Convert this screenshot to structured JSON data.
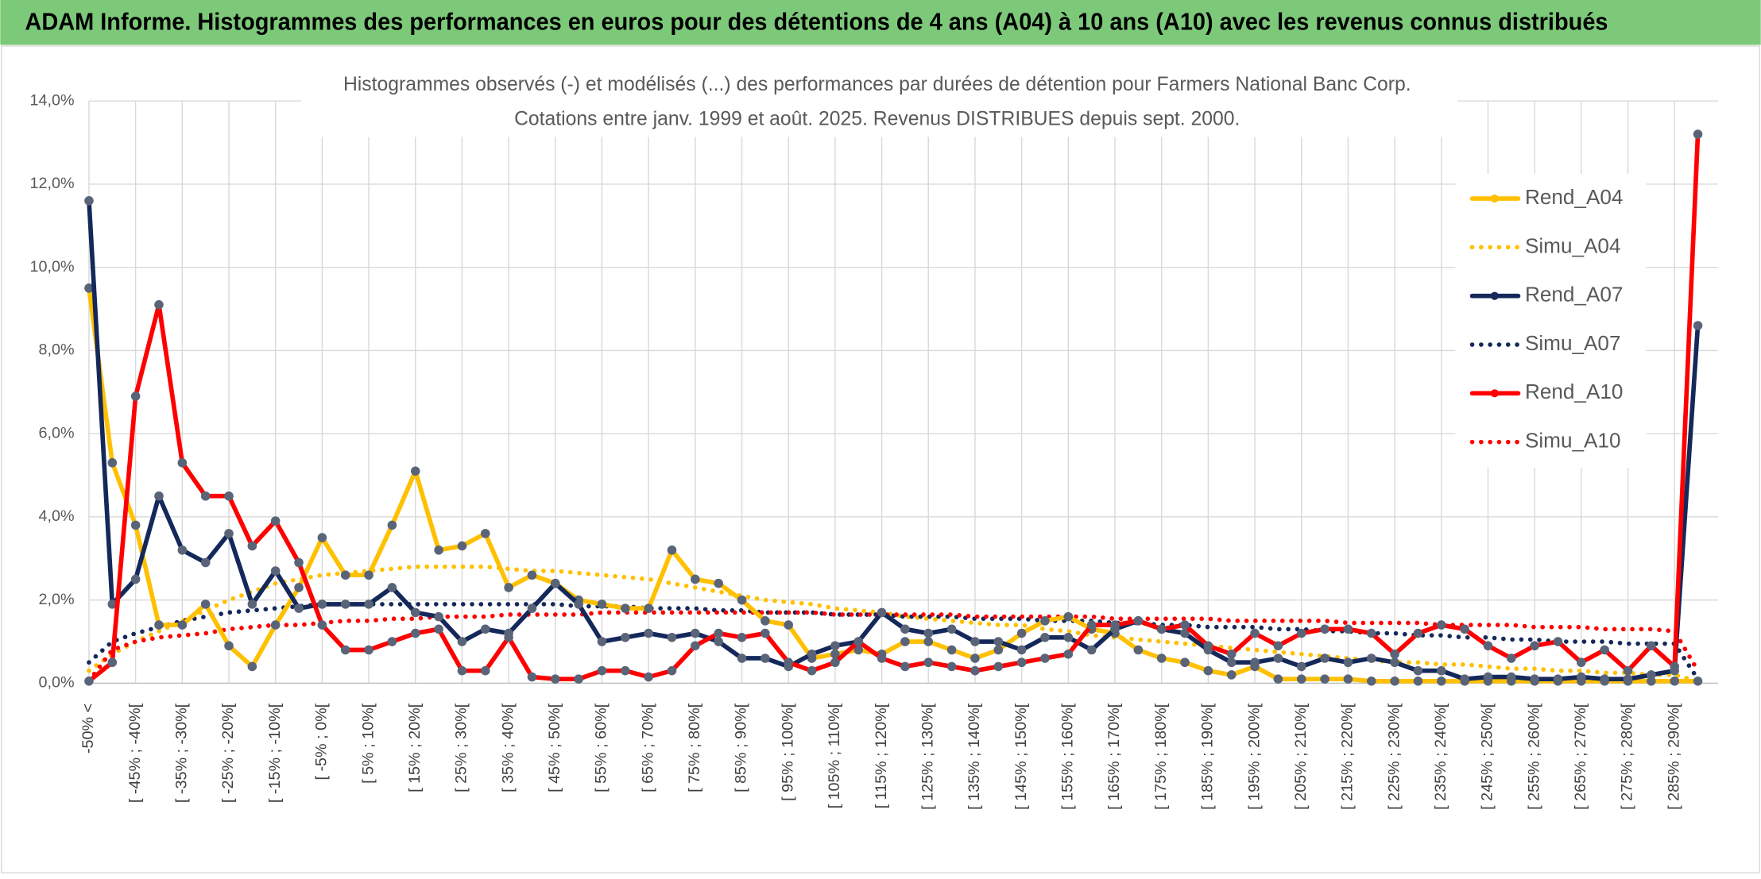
{
  "chart_data": {
    "type": "line",
    "title": "ADAM Informe. Histogrammes des performances en euros pour des détentions de 4 ans (A04) à 10 ans (A10) avec les revenus connus distribués",
    "subtitle": [
      "Histogrammes observés (-) et modélisés (...) des performances par durées de détention pour Farmers National Banc Corp.",
      "Cotations entre janv. 1999 et août. 2025. Revenus DISTRIBUES depuis sept. 2000."
    ],
    "categories": [
      "-50% <",
      null,
      "[ -45% ; -40%[",
      null,
      "[ -35% ; -30%[",
      null,
      "[ -25% ; -20%[",
      null,
      "[ -15% ; -10%[",
      null,
      "[ -5% ; 0%[",
      null,
      "[ 5% ; 10%[",
      null,
      "[ 15% ; 20%[",
      null,
      "[ 25% ; 30%[",
      null,
      "[ 35% ; 40%[",
      null,
      "[ 45% ; 50%[",
      null,
      "[ 55% ; 60%[",
      null,
      "[ 65% ; 70%[",
      null,
      "[ 75% ; 80%[",
      null,
      "[ 85% ; 90%[",
      null,
      "[ 95% ; 100%[",
      null,
      "[ 105% ; 110%[",
      null,
      "[ 115% ; 120%[",
      null,
      "[ 125% ; 130%[",
      null,
      "[ 135% ; 140%[",
      null,
      "[ 145% ; 150%[",
      null,
      "[ 155% ; 160%[",
      null,
      "[ 165% ; 170%[",
      null,
      "[ 175% ; 180%[",
      null,
      "[ 185% ; 190%[",
      null,
      "[ 195% ; 200%[",
      null,
      "[ 205% ; 210%[",
      null,
      "[ 215% ; 220%[",
      null,
      "[ 225% ; 230%[",
      null,
      "[ 235% ; 240%[",
      null,
      "[ 245% ; 250%[",
      null,
      "[ 255% ; 260%[",
      null,
      "[ 265% ; 270%[",
      null,
      "[ 275% ; 280%[",
      null,
      "[ 285% ; 290%[",
      null
    ],
    "ylim": [
      0,
      14
    ],
    "yticks": [
      {
        "value": 0,
        "label": "0,0%"
      },
      {
        "value": 2,
        "label": "2,0%"
      },
      {
        "value": 4,
        "label": "4,0%"
      },
      {
        "value": 6,
        "label": "6,0%"
      },
      {
        "value": 8,
        "label": "8,0%"
      },
      {
        "value": 10,
        "label": "10,0%"
      },
      {
        "value": 12,
        "label": "12,0%"
      },
      {
        "value": 14,
        "label": "14,0%"
      }
    ],
    "grid": true,
    "legend": "upper right",
    "series": [
      {
        "name": "Rend_A04",
        "color": "#ffc000",
        "style": "solid",
        "markers": true,
        "values": [
          9.5,
          5.3,
          3.8,
          1.4,
          1.4,
          1.9,
          0.9,
          0.4,
          1.4,
          2.3,
          3.5,
          2.6,
          2.6,
          3.8,
          5.1,
          3.2,
          3.3,
          3.6,
          2.3,
          2.6,
          2.4,
          2.0,
          1.9,
          1.8,
          1.8,
          3.2,
          2.5,
          2.4,
          2.0,
          1.5,
          1.4,
          0.6,
          0.7,
          0.8,
          0.7,
          1.0,
          1.0,
          0.8,
          0.6,
          0.8,
          1.2,
          1.5,
          1.6,
          1.3,
          1.2,
          0.8,
          0.6,
          0.5,
          0.3,
          0.2,
          0.4,
          0.1,
          0.1,
          0.1,
          0.1,
          0.05,
          0.05,
          0.05,
          0.05,
          0.05,
          0.05,
          0.05,
          0.05,
          0.05,
          0.05,
          0.05,
          0.05,
          0.05,
          0.05,
          0.05
        ]
      },
      {
        "name": "Simu_A04",
        "color": "#ffc000",
        "style": "dotted",
        "markers": false,
        "values": [
          0.3,
          0.7,
          1.0,
          1.25,
          1.5,
          1.75,
          2.0,
          2.2,
          2.4,
          2.5,
          2.6,
          2.65,
          2.7,
          2.75,
          2.8,
          2.8,
          2.8,
          2.8,
          2.75,
          2.7,
          2.7,
          2.65,
          2.6,
          2.55,
          2.5,
          2.4,
          2.3,
          2.2,
          2.1,
          2.0,
          1.95,
          1.9,
          1.8,
          1.75,
          1.7,
          1.6,
          1.55,
          1.5,
          1.45,
          1.4,
          1.4,
          1.3,
          1.25,
          1.15,
          1.1,
          1.05,
          1.0,
          0.95,
          0.9,
          0.85,
          0.8,
          0.75,
          0.7,
          0.65,
          0.6,
          0.55,
          0.5,
          0.5,
          0.45,
          0.45,
          0.4,
          0.35,
          0.35,
          0.3,
          0.3,
          0.25,
          0.25,
          0.2,
          0.2,
          0.05
        ]
      },
      {
        "name": "Rend_A07",
        "color": "#14285a",
        "style": "solid",
        "markers": true,
        "values": [
          11.6,
          1.9,
          2.5,
          4.5,
          3.2,
          2.9,
          3.6,
          1.9,
          2.7,
          1.8,
          1.9,
          1.9,
          1.9,
          2.3,
          1.7,
          1.6,
          1.0,
          1.3,
          1.2,
          1.8,
          2.4,
          1.9,
          1.0,
          1.1,
          1.2,
          1.1,
          1.2,
          1.0,
          0.6,
          0.6,
          0.4,
          0.7,
          0.9,
          1.0,
          1.7,
          1.3,
          1.2,
          1.3,
          1.0,
          1.0,
          0.8,
          1.1,
          1.1,
          0.8,
          1.3,
          1.5,
          1.3,
          1.2,
          0.8,
          0.5,
          0.5,
          0.6,
          0.4,
          0.6,
          0.5,
          0.6,
          0.5,
          0.3,
          0.3,
          0.1,
          0.15,
          0.15,
          0.1,
          0.1,
          0.15,
          0.1,
          0.1,
          0.2,
          0.3,
          8.6
        ]
      },
      {
        "name": "Simu_A07",
        "color": "#14285a",
        "style": "dotted",
        "markers": false,
        "values": [
          0.5,
          1.0,
          1.2,
          1.35,
          1.5,
          1.6,
          1.7,
          1.75,
          1.8,
          1.85,
          1.9,
          1.9,
          1.9,
          1.9,
          1.9,
          1.9,
          1.9,
          1.9,
          1.9,
          1.9,
          1.9,
          1.85,
          1.85,
          1.85,
          1.8,
          1.8,
          1.8,
          1.75,
          1.75,
          1.7,
          1.7,
          1.7,
          1.65,
          1.65,
          1.65,
          1.6,
          1.6,
          1.6,
          1.55,
          1.55,
          1.55,
          1.5,
          1.5,
          1.5,
          1.45,
          1.45,
          1.4,
          1.4,
          1.35,
          1.35,
          1.35,
          1.3,
          1.3,
          1.25,
          1.25,
          1.2,
          1.2,
          1.15,
          1.15,
          1.1,
          1.1,
          1.05,
          1.05,
          1.0,
          1.0,
          1.0,
          0.95,
          0.95,
          0.95,
          0.1
        ]
      },
      {
        "name": "Rend_A10",
        "color": "#ff0000",
        "style": "solid",
        "markers": true,
        "values": [
          0.05,
          0.5,
          6.9,
          9.1,
          5.3,
          4.5,
          4.5,
          3.3,
          3.9,
          2.9,
          1.4,
          0.8,
          0.8,
          1.0,
          1.2,
          1.3,
          0.3,
          0.3,
          1.1,
          0.15,
          0.1,
          0.1,
          0.3,
          0.3,
          0.15,
          0.3,
          0.9,
          1.2,
          1.1,
          1.2,
          0.5,
          0.3,
          0.5,
          1.0,
          0.6,
          0.4,
          0.5,
          0.4,
          0.3,
          0.4,
          0.5,
          0.6,
          0.7,
          1.4,
          1.4,
          1.5,
          1.3,
          1.4,
          0.9,
          0.7,
          1.2,
          0.9,
          1.2,
          1.3,
          1.3,
          1.2,
          0.7,
          1.2,
          1.4,
          1.3,
          0.9,
          0.6,
          0.9,
          1.0,
          0.5,
          0.8,
          0.3,
          0.9,
          0.4,
          13.2
        ]
      },
      {
        "name": "Simu_A10",
        "color": "#ff0000",
        "style": "dotted",
        "markers": false,
        "values": [
          0.05,
          0.8,
          1.0,
          1.1,
          1.15,
          1.2,
          1.3,
          1.35,
          1.4,
          1.4,
          1.45,
          1.5,
          1.5,
          1.55,
          1.55,
          1.6,
          1.6,
          1.6,
          1.65,
          1.65,
          1.65,
          1.65,
          1.7,
          1.7,
          1.7,
          1.7,
          1.7,
          1.7,
          1.7,
          1.7,
          1.7,
          1.7,
          1.65,
          1.65,
          1.65,
          1.65,
          1.65,
          1.65,
          1.6,
          1.6,
          1.6,
          1.6,
          1.6,
          1.6,
          1.55,
          1.55,
          1.55,
          1.55,
          1.55,
          1.5,
          1.5,
          1.5,
          1.5,
          1.5,
          1.45,
          1.45,
          1.45,
          1.45,
          1.4,
          1.4,
          1.4,
          1.4,
          1.35,
          1.35,
          1.35,
          1.3,
          1.3,
          1.3,
          1.25,
          0.3
        ]
      }
    ]
  }
}
